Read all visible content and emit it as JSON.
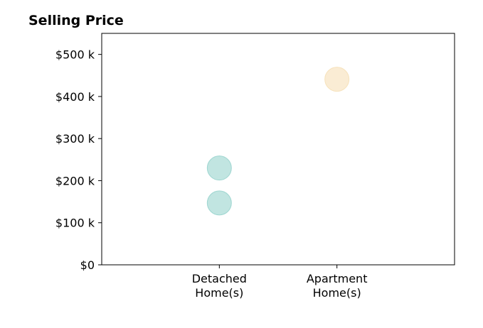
{
  "chart_data": {
    "type": "scatter",
    "title": "Selling Price",
    "xlabel": "",
    "ylabel": "",
    "categories": [
      [
        "Detached",
        "Home(s)"
      ],
      [
        "Apartment",
        "Home(s)"
      ]
    ],
    "xlim": [
      -1,
      2
    ],
    "ylim": [
      0,
      550000
    ],
    "yticks": [
      0,
      100000,
      200000,
      300000,
      400000,
      500000
    ],
    "ytick_labels": [
      "$0",
      "$100 k",
      "$200 k",
      "$300 k",
      "$400 k",
      "$500 k"
    ],
    "grid": false,
    "legend": "none",
    "points": [
      {
        "category_index": 0,
        "value": 147000,
        "color": "#8ecfc9"
      },
      {
        "category_index": 0,
        "value": 230000,
        "color": "#8ecfc9"
      },
      {
        "category_index": 1,
        "value": 441000,
        "color": "#f5ddb0"
      }
    ],
    "marker_opacity": 0.55
  }
}
